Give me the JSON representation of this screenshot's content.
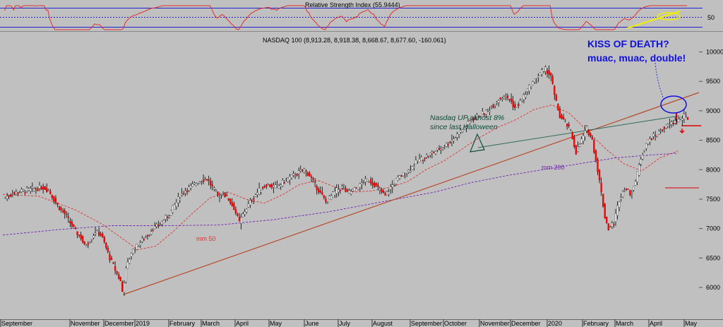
{
  "chart_data": {
    "type": "candlestick",
    "title": "NASDAQ 100",
    "ohlc_header": "NASDAQ 100 (8,913.28, 8,918.38, 8,668.67, 8,677.60, -160.061)",
    "indicator": {
      "title": "Relative Strength Index (55.9444)",
      "value": 55.9444,
      "tick": "50"
    },
    "y_ticks": [
      "10000",
      "9500",
      "9000",
      "8500",
      "8000",
      "7500",
      "7000",
      "6500",
      "6000"
    ],
    "ylim": [
      5750,
      10150
    ],
    "x_labels": [
      "September",
      "November",
      "December",
      "2019",
      "February",
      "March",
      "April",
      "May",
      "June",
      "July",
      "August",
      "September",
      "October",
      "November",
      "December",
      "2020",
      "February",
      "March",
      "April",
      "May"
    ],
    "price_path": [
      [
        0,
        7520
      ],
      [
        3,
        7560
      ],
      [
        7,
        7610
      ],
      [
        11,
        7640
      ],
      [
        15,
        7660
      ],
      [
        18,
        7680
      ],
      [
        22,
        7700
      ],
      [
        25,
        7650
      ],
      [
        28,
        7500
      ],
      [
        31,
        7350
      ],
      [
        34,
        7250
      ],
      [
        37,
        7100
      ],
      [
        40,
        6950
      ],
      [
        43,
        6850
      ],
      [
        45,
        6700
      ],
      [
        48,
        6800
      ],
      [
        51,
        6950
      ],
      [
        54,
        6900
      ],
      [
        56,
        6750
      ],
      [
        59,
        6500
      ],
      [
        62,
        6300
      ],
      [
        65,
        6100
      ],
      [
        66,
        5930
      ],
      [
        68,
        6300
      ],
      [
        71,
        6600
      ],
      [
        74,
        6700
      ],
      [
        77,
        6800
      ],
      [
        80,
        6900
      ],
      [
        83,
        7000
      ],
      [
        86,
        7050
      ],
      [
        89,
        7150
      ],
      [
        92,
        7250
      ],
      [
        95,
        7400
      ],
      [
        98,
        7550
      ],
      [
        101,
        7650
      ],
      [
        104,
        7700
      ],
      [
        107,
        7780
      ],
      [
        110,
        7820
      ],
      [
        113,
        7850
      ],
      [
        116,
        7700
      ],
      [
        119,
        7550
      ],
      [
        122,
        7600
      ],
      [
        125,
        7500
      ],
      [
        128,
        7350
      ],
      [
        131,
        7100
      ],
      [
        134,
        7300
      ],
      [
        137,
        7450
      ],
      [
        140,
        7580
      ],
      [
        143,
        7680
      ],
      [
        146,
        7750
      ],
      [
        149,
        7720
      ],
      [
        152,
        7700
      ],
      [
        155,
        7780
      ],
      [
        158,
        7850
      ],
      [
        161,
        7900
      ],
      [
        164,
        7950
      ],
      [
        167,
        8000
      ],
      [
        170,
        7900
      ],
      [
        173,
        7750
      ],
      [
        176,
        7600
      ],
      [
        179,
        7450
      ],
      [
        182,
        7550
      ],
      [
        185,
        7650
      ],
      [
        188,
        7700
      ],
      [
        191,
        7600
      ],
      [
        194,
        7650
      ],
      [
        197,
        7700
      ],
      [
        200,
        7800
      ],
      [
        203,
        7820
      ],
      [
        206,
        7750
      ],
      [
        209,
        7650
      ],
      [
        212,
        7550
      ],
      [
        215,
        7700
      ],
      [
        218,
        7820
      ],
      [
        221,
        7900
      ],
      [
        224,
        7950
      ],
      [
        227,
        8050
      ],
      [
        230,
        8150
      ],
      [
        233,
        8200
      ],
      [
        236,
        8250
      ],
      [
        239,
        8300
      ],
      [
        242,
        8350
      ],
      [
        245,
        8400
      ],
      [
        248,
        8480
      ],
      [
        251,
        8560
      ],
      [
        254,
        8650
      ],
      [
        257,
        8750
      ],
      [
        260,
        8850
      ],
      [
        263,
        8900
      ],
      [
        266,
        8950
      ],
      [
        269,
        9000
      ],
      [
        272,
        9100
      ],
      [
        275,
        9200
      ],
      [
        278,
        9250
      ],
      [
        281,
        9200
      ],
      [
        284,
        9050
      ],
      [
        287,
        9150
      ],
      [
        290,
        9300
      ],
      [
        293,
        9450
      ],
      [
        296,
        9550
      ],
      [
        298,
        9650
      ],
      [
        301,
        9700
      ],
      [
        304,
        9600
      ],
      [
        306,
        9250
      ],
      [
        309,
        8900
      ],
      [
        312,
        8800
      ],
      [
        315,
        8650
      ],
      [
        318,
        8300
      ],
      [
        321,
        8500
      ],
      [
        324,
        8700
      ],
      [
        327,
        8500
      ],
      [
        330,
        8000
      ],
      [
        332,
        7600
      ],
      [
        334,
        7200
      ],
      [
        336,
        7000
      ],
      [
        339,
        7100
      ],
      [
        342,
        7500
      ],
      [
        345,
        7700
      ],
      [
        348,
        7600
      ],
      [
        351,
        7800
      ],
      [
        354,
        8200
      ],
      [
        357,
        8450
      ],
      [
        360,
        8550
      ],
      [
        363,
        8600
      ],
      [
        366,
        8700
      ],
      [
        369,
        8750
      ],
      [
        372,
        8800
      ],
      [
        375,
        8850
      ],
      [
        378,
        8900
      ],
      [
        380,
        8880
      ]
    ],
    "series": [
      {
        "name": "mm 50",
        "color": "#e03030",
        "values": [
          [
            0,
            7580
          ],
          [
            20,
            7550
          ],
          [
            40,
            7320
          ],
          [
            55,
            7080
          ],
          [
            65,
            6860
          ],
          [
            75,
            6640
          ],
          [
            85,
            6700
          ],
          [
            95,
            6960
          ],
          [
            105,
            7250
          ],
          [
            115,
            7520
          ],
          [
            125,
            7620
          ],
          [
            135,
            7500
          ],
          [
            145,
            7430
          ],
          [
            155,
            7570
          ],
          [
            165,
            7750
          ],
          [
            175,
            7820
          ],
          [
            185,
            7700
          ],
          [
            195,
            7620
          ],
          [
            205,
            7640
          ],
          [
            215,
            7700
          ],
          [
            225,
            7800
          ],
          [
            235,
            8000
          ],
          [
            245,
            8150
          ],
          [
            255,
            8350
          ],
          [
            265,
            8550
          ],
          [
            275,
            8720
          ],
          [
            285,
            8850
          ],
          [
            295,
            9020
          ],
          [
            305,
            9100
          ],
          [
            315,
            8950
          ],
          [
            325,
            8650
          ],
          [
            335,
            8350
          ],
          [
            345,
            8100
          ],
          [
            355,
            7980
          ],
          [
            365,
            8200
          ],
          [
            375,
            8320
          ]
        ]
      },
      {
        "name": "mm 200",
        "color": "#7020b0",
        "values": [
          [
            0,
            6890
          ],
          [
            30,
            6980
          ],
          [
            60,
            7050
          ],
          [
            90,
            7050
          ],
          [
            120,
            7060
          ],
          [
            150,
            7150
          ],
          [
            180,
            7280
          ],
          [
            210,
            7450
          ],
          [
            240,
            7620
          ],
          [
            260,
            7780
          ],
          [
            280,
            7900
          ],
          [
            300,
            8000
          ],
          [
            320,
            8100
          ],
          [
            340,
            8200
          ],
          [
            360,
            8250
          ],
          [
            375,
            8280
          ]
        ]
      }
    ],
    "rsi_levels": [
      70,
      50,
      30
    ],
    "annotations": {
      "kiss_title": "KISS OF DEATH?",
      "kiss_sub": "muac, muac, double!",
      "nasdaq_line1": "Nasdaq UP almost 8%",
      "nasdaq_line2": "since last Halloween",
      "mm50_label": "mm 50",
      "mm200_label": "mm 200"
    },
    "colors": {
      "background": "#c0c0c0",
      "up_candle": "#ffffff",
      "down_candle": "#ff0000",
      "trendline": "#b84a2a",
      "green_line": "#2e6b58",
      "blue": "#1010e0",
      "rsi_line": "#e03030",
      "rsi_bands": "#2020d0",
      "yellow_line": "#f0f000"
    }
  }
}
